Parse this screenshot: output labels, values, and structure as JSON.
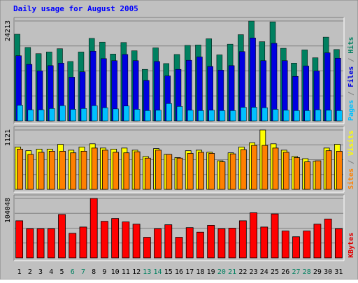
{
  "chart_data": [
    {
      "type": "bar",
      "title": "Daily usage for August 2005",
      "y_max_label": "24213",
      "ylabel_parts": [
        {
          "text": "Pages",
          "color": "#00c0ff"
        },
        {
          "text": " / ",
          "color": "#808080"
        },
        {
          "text": "Files",
          "color": "#0000e0"
        },
        {
          "text": " / ",
          "color": "#808080"
        },
        {
          "text": "Hits",
          "color": "#008060"
        }
      ],
      "categories": [
        "1",
        "2",
        "3",
        "4",
        "5",
        "6",
        "7",
        "8",
        "9",
        "10",
        "11",
        "12",
        "13",
        "14",
        "15",
        "16",
        "17",
        "18",
        "19",
        "20",
        "21",
        "22",
        "23",
        "24",
        "25",
        "26",
        "27",
        "28",
        "29",
        "30",
        "31"
      ],
      "weekend_days": [
        "6",
        "7",
        "13",
        "14",
        "20",
        "21",
        "27",
        "28"
      ],
      "ylim": [
        0,
        24213
      ],
      "series": [
        {
          "name": "Hits",
          "color": "#008060",
          "values": [
            21000,
            17800,
            16300,
            16700,
            17500,
            14400,
            16700,
            20000,
            19100,
            16200,
            19000,
            17000,
            12500,
            17700,
            13900,
            16100,
            18300,
            18400,
            19900,
            16000,
            18600,
            20900,
            24200,
            19200,
            24000,
            17600,
            14000,
            17200,
            15300,
            20300,
            17300
          ]
        },
        {
          "name": "Files",
          "color": "#0000e0",
          "values": [
            15800,
            13700,
            12100,
            13400,
            14000,
            10600,
            11900,
            16900,
            15100,
            14600,
            16100,
            14600,
            9800,
            14400,
            10900,
            12500,
            14700,
            15500,
            13200,
            12300,
            13400,
            16800,
            20100,
            14600,
            18800,
            14600,
            10800,
            13300,
            12100,
            16500,
            15200
          ]
        },
        {
          "name": "Pages",
          "color": "#00c0ff",
          "values": [
            3800,
            2700,
            2700,
            3000,
            3700,
            2800,
            3000,
            3700,
            3200,
            2900,
            3600,
            2800,
            2500,
            2600,
            4200,
            3500,
            2600,
            2500,
            2600,
            2500,
            2500,
            3300,
            3300,
            3200,
            2800,
            2600,
            2500,
            2500,
            2700,
            2600,
            2500
          ]
        }
      ]
    },
    {
      "type": "bar",
      "y_max_label": "1121",
      "ylabel_parts": [
        {
          "text": "Sites",
          "color": "#ff8000"
        },
        {
          "text": " / ",
          "color": "#808080"
        },
        {
          "text": "Visits",
          "color": "#ffff00"
        }
      ],
      "categories": [
        "1",
        "2",
        "3",
        "4",
        "5",
        "6",
        "7",
        "8",
        "9",
        "10",
        "11",
        "12",
        "13",
        "14",
        "15",
        "16",
        "17",
        "18",
        "19",
        "20",
        "21",
        "22",
        "23",
        "24",
        "25",
        "26",
        "27",
        "28",
        "29",
        "30",
        "31"
      ],
      "ylim": [
        0,
        1121
      ],
      "series": [
        {
          "name": "Visits",
          "color": "#ffff00",
          "values": [
            800,
            730,
            760,
            760,
            850,
            740,
            800,
            860,
            780,
            760,
            780,
            740,
            620,
            770,
            660,
            600,
            730,
            740,
            700,
            540,
            690,
            800,
            880,
            1121,
            860,
            740,
            620,
            580,
            530,
            780,
            850
          ]
        },
        {
          "name": "Sites",
          "color": "#ff8000",
          "values": [
            760,
            660,
            700,
            720,
            720,
            690,
            720,
            780,
            740,
            700,
            690,
            710,
            590,
            740,
            660,
            590,
            680,
            700,
            680,
            520,
            670,
            750,
            830,
            830,
            780,
            700,
            600,
            520,
            540,
            730,
            720
          ]
        }
      ]
    },
    {
      "type": "bar",
      "y_max_label": "104048",
      "ylabel_parts": [
        {
          "text": "KBytes",
          "color": "#e00000"
        }
      ],
      "categories": [
        "1",
        "2",
        "3",
        "4",
        "5",
        "6",
        "7",
        "8",
        "9",
        "10",
        "11",
        "12",
        "13",
        "14",
        "15",
        "16",
        "17",
        "18",
        "19",
        "20",
        "21",
        "22",
        "23",
        "24",
        "25",
        "26",
        "27",
        "28",
        "29",
        "30",
        "31"
      ],
      "ylim": [
        0,
        104048
      ],
      "series": [
        {
          "name": "KBytes",
          "color": "#ff0000",
          "values": [
            65000,
            51000,
            51000,
            51000,
            76000,
            43000,
            54000,
            104048,
            64000,
            69000,
            63000,
            59000,
            36000,
            51000,
            58000,
            36000,
            53000,
            45000,
            57000,
            51000,
            52000,
            65000,
            79000,
            54000,
            77000,
            47000,
            37000,
            47000,
            59000,
            68000,
            51000
          ]
        }
      ]
    }
  ]
}
